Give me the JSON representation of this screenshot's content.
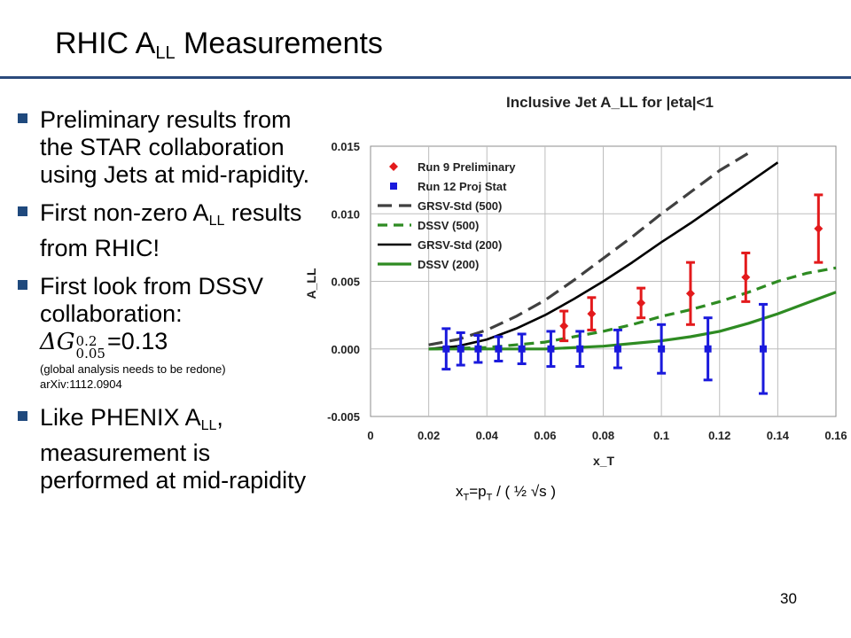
{
  "slide": {
    "title_main": "RHIC A",
    "title_sub": "LL",
    "title_rest": " Measurements",
    "page_number": "30"
  },
  "bullets": {
    "b1": "Preliminary results from the STAR collaboration using Jets at mid-rapidity.",
    "b2_pre": "First non-zero A",
    "b2_sub": "LL",
    "b2_post": " results from RHIC!",
    "b3": "First look from DSSV collaboration:",
    "b3_delta": "ΔG",
    "b3_sup": "0.2",
    "b3_subscript": "0.05",
    "b3_value": "=0.13",
    "b3_note": "(global analysis needs to be redone)",
    "b3_ref": "arXiv:1112.0904",
    "b4_pre": "Like PHENIX A",
    "b4_sub": "LL",
    "b4_post": ", measurement is performed at mid-rapidity"
  },
  "xt_formula": {
    "x": "x",
    "x_sub": "T",
    "eq": "=p",
    "p_sub": "T",
    "rest": " / ( ½ √s )"
  },
  "chart_data": {
    "type": "scatter",
    "title": "Inclusive Jet A_LL for |eta|<1",
    "xlabel": "x_T",
    "ylabel": "A_LL",
    "xlim": [
      0,
      0.16
    ],
    "ylim": [
      -0.005,
      0.015
    ],
    "xticks": [
      "0",
      "0.02",
      "0.04",
      "0.06",
      "0.08",
      "0.1",
      "0.12",
      "0.14",
      "0.16"
    ],
    "yticks": [
      "0.015",
      "0.010",
      "0.005",
      "0.000",
      "-0.005"
    ],
    "grid": true,
    "legend_position": "top-left",
    "colors": {
      "run9": "#e31a1c",
      "run12": "#1a1adc",
      "grsv": "#404040",
      "dssv": "#2e8b22",
      "grsv200": "#000000"
    },
    "series": [
      {
        "name": "Run 9 Preliminary",
        "kind": "points",
        "marker": "diamond",
        "points": [
          {
            "x": 0.0665,
            "y": 0.0017,
            "err": 0.0011
          },
          {
            "x": 0.076,
            "y": 0.0026,
            "err": 0.0012
          },
          {
            "x": 0.093,
            "y": 0.0034,
            "err": 0.0011
          },
          {
            "x": 0.11,
            "y": 0.0041,
            "err": 0.0023
          },
          {
            "x": 0.129,
            "y": 0.0053,
            "err": 0.0018
          },
          {
            "x": 0.154,
            "y": 0.0089,
            "err": 0.0025
          }
        ]
      },
      {
        "name": "Run 12 Proj Stat",
        "kind": "points",
        "marker": "square",
        "points": [
          {
            "x": 0.026,
            "y": 0.0,
            "err": 0.0015
          },
          {
            "x": 0.031,
            "y": 0.0,
            "err": 0.0012
          },
          {
            "x": 0.037,
            "y": 0.0,
            "err": 0.001
          },
          {
            "x": 0.044,
            "y": 0.0,
            "err": 0.0009
          },
          {
            "x": 0.052,
            "y": 0.0,
            "err": 0.0011
          },
          {
            "x": 0.062,
            "y": 0.0,
            "err": 0.0013
          },
          {
            "x": 0.072,
            "y": 0.0,
            "err": 0.0013
          },
          {
            "x": 0.085,
            "y": 0.0,
            "err": 0.0014
          },
          {
            "x": 0.1,
            "y": 0.0,
            "err": 0.0018
          },
          {
            "x": 0.116,
            "y": 0.0,
            "err": 0.0023
          },
          {
            "x": 0.135,
            "y": 0.0,
            "err": 0.0033
          }
        ]
      },
      {
        "name": "GRSV-Std (500)",
        "kind": "line",
        "dash": "long",
        "points": [
          [
            0.02,
            0.0003
          ],
          [
            0.03,
            0.0007
          ],
          [
            0.04,
            0.0014
          ],
          [
            0.05,
            0.0024
          ],
          [
            0.06,
            0.0036
          ],
          [
            0.07,
            0.0051
          ],
          [
            0.08,
            0.0067
          ],
          [
            0.09,
            0.0083
          ],
          [
            0.1,
            0.01
          ],
          [
            0.11,
            0.0116
          ],
          [
            0.12,
            0.0132
          ],
          [
            0.13,
            0.0145
          ]
        ]
      },
      {
        "name": "DSSV (500)",
        "kind": "line",
        "dash": "short",
        "points": [
          [
            0.02,
            0.0
          ],
          [
            0.04,
            0.0001
          ],
          [
            0.06,
            0.0005
          ],
          [
            0.07,
            0.0009
          ],
          [
            0.08,
            0.0013
          ],
          [
            0.09,
            0.0018
          ],
          [
            0.1,
            0.0024
          ],
          [
            0.11,
            0.0029
          ],
          [
            0.12,
            0.0035
          ],
          [
            0.13,
            0.0042
          ],
          [
            0.14,
            0.005
          ],
          [
            0.15,
            0.0056
          ],
          [
            0.16,
            0.006
          ]
        ]
      },
      {
        "name": "GRSV-Std (200)",
        "kind": "line",
        "dash": "solid",
        "points": [
          [
            0.02,
            0.0
          ],
          [
            0.03,
            0.0002
          ],
          [
            0.04,
            0.0007
          ],
          [
            0.05,
            0.0015
          ],
          [
            0.06,
            0.0025
          ],
          [
            0.07,
            0.0037
          ],
          [
            0.08,
            0.005
          ],
          [
            0.09,
            0.0064
          ],
          [
            0.1,
            0.0079
          ],
          [
            0.11,
            0.0093
          ],
          [
            0.12,
            0.0108
          ],
          [
            0.13,
            0.0123
          ],
          [
            0.14,
            0.0138
          ]
        ]
      },
      {
        "name": "DSSV (200)",
        "kind": "line",
        "dash": "solid-thick",
        "points": [
          [
            0.02,
            0.0
          ],
          [
            0.06,
            0.0
          ],
          [
            0.08,
            0.0002
          ],
          [
            0.1,
            0.0006
          ],
          [
            0.11,
            0.0009
          ],
          [
            0.12,
            0.0013
          ],
          [
            0.13,
            0.0019
          ],
          [
            0.14,
            0.0026
          ],
          [
            0.15,
            0.0034
          ],
          [
            0.16,
            0.0042
          ]
        ]
      }
    ]
  }
}
